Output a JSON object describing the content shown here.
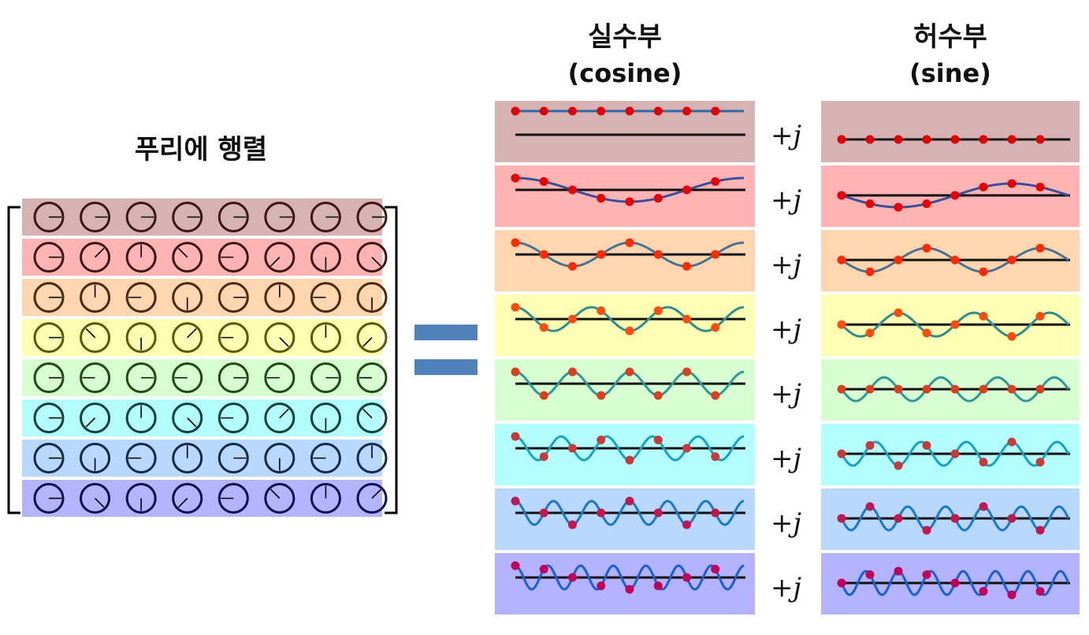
{
  "matrix": {
    "title": "푸리에 행렬",
    "rows": 8,
    "cols": 8,
    "row_colors": [
      "#d6b2b2",
      "#ffb3b3",
      "#ffd6b0",
      "#ffffb3",
      "#d8ffd2",
      "#b3ffff",
      "#b8d8ff",
      "#b3b3ff"
    ],
    "ring_colors": [
      "#3d1515",
      "#3d1515",
      "#4a2a08",
      "#5a5a05",
      "#1f4a12",
      "#0d3f3f",
      "#10284a",
      "#0d0d55"
    ]
  },
  "equals_color": "#4f81bd",
  "real_column": {
    "title": "실수부",
    "subtitle": "(cosine)"
  },
  "imag_column": {
    "title": "허수부",
    "subtitle": "(sine)"
  },
  "operator_label": "+j",
  "rows": [
    {
      "k": 0,
      "bg": "#d6b2b2",
      "wave": "#2e6aa8",
      "dot": "#e00000"
    },
    {
      "k": 1,
      "bg": "#ffb3b3",
      "wave": "#3a4f9a",
      "dot": "#e80000"
    },
    {
      "k": 2,
      "bg": "#ffd6b0",
      "wave": "#4a7290",
      "dot": "#ff2a00"
    },
    {
      "k": 3,
      "bg": "#ffffb3",
      "wave": "#2f8f8f",
      "dot": "#ff4a10"
    },
    {
      "k": 4,
      "bg": "#d8ffd2",
      "wave": "#2c9a96",
      "dot": "#d84020"
    },
    {
      "k": 5,
      "bg": "#b3ffff",
      "wave": "#1aa0c0",
      "dot": "#c83a3a"
    },
    {
      "k": 6,
      "bg": "#b8d8ff",
      "wave": "#1a78c8",
      "dot": "#c01850"
    },
    {
      "k": 7,
      "bg": "#b3b3ff",
      "wave": "#1a5fd0",
      "dot": "#c0005a"
    }
  ]
}
